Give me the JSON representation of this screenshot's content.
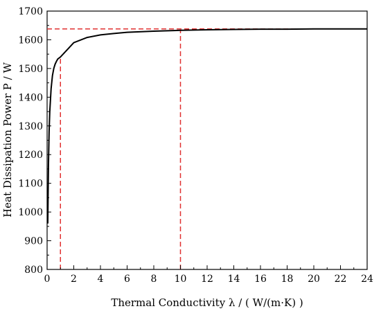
{
  "chart_data": {
    "type": "line",
    "xlabel": "Thermal Conductivity  λ / ( W/(m·K) )",
    "ylabel": "Heat Dissipation Power P / W",
    "xlim": [
      0,
      24
    ],
    "ylim": [
      800,
      1700
    ],
    "x_ticks": [
      0,
      2,
      4,
      6,
      8,
      10,
      12,
      14,
      16,
      18,
      20,
      22,
      24
    ],
    "y_ticks": [
      800,
      900,
      1000,
      1100,
      1200,
      1300,
      1400,
      1500,
      1600,
      1700
    ],
    "grid": false,
    "series": [
      {
        "color": "#000000",
        "x": [
          0.05,
          0.1,
          0.15,
          0.2,
          0.3,
          0.4,
          0.5,
          0.6,
          0.7,
          0.8,
          1,
          1.5,
          2,
          3,
          4,
          5,
          6,
          8,
          10,
          12,
          14,
          16,
          18,
          20,
          22,
          24
        ],
        "y": [
          960,
          1160,
          1280,
          1350,
          1430,
          1475,
          1500,
          1515,
          1525,
          1533,
          1540,
          1565,
          1590,
          1608,
          1617,
          1622,
          1626,
          1630,
          1633,
          1635,
          1636,
          1637,
          1637,
          1638,
          1638,
          1638
        ]
      }
    ],
    "reference_lines": [
      {
        "orientation": "horizontal",
        "y": 1638,
        "x_range": [
          0,
          24
        ],
        "color": "#e03030",
        "style": "dashed"
      },
      {
        "orientation": "vertical",
        "x": 1,
        "y_range": [
          800,
          1540
        ],
        "color": "#e03030",
        "style": "dashed"
      },
      {
        "orientation": "vertical",
        "x": 10,
        "y_range": [
          800,
          1633
        ],
        "color": "#e03030",
        "style": "dashed"
      }
    ]
  }
}
